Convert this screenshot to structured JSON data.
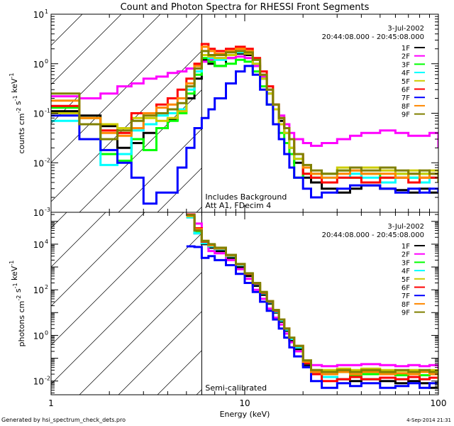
{
  "chart_data": [
    {
      "type": "line",
      "panel": "top",
      "title": "Count and Photon Spectra for RHESSI Front Segments",
      "xlabel": "Energy (keV)",
      "ylabel": "counts cm^-2 s^-1 keV^-1",
      "xscale": "log",
      "yscale": "log",
      "xlim": [
        1,
        100
      ],
      "ylim": [
        0.001,
        10
      ],
      "y_tick_labels": [
        {
          "value": 10,
          "base": "10",
          "exp": "1"
        },
        {
          "value": 1,
          "base": "10",
          "exp": "0"
        },
        {
          "value": 0.1,
          "base": "10",
          "exp": "-1"
        },
        {
          "value": 0.01,
          "base": "10",
          "exp": "-2"
        },
        {
          "value": 0.001,
          "base": "10",
          "exp": "-3"
        }
      ],
      "annotation_date": "3-Jul-2002",
      "annotation_time": "20:44:08.000 - 20:45:08.000",
      "annotation_lower": [
        "Includes Background",
        "Att A1, FDecim 4"
      ],
      "legend_position": "top-right",
      "threshold_energy_keV": 6,
      "x": [
        1,
        1.4,
        1.8,
        2.2,
        2.6,
        3.0,
        3.5,
        4.0,
        4.5,
        5.0,
        5.5,
        6.0,
        6.5,
        7,
        8,
        9,
        10,
        11,
        12,
        13,
        14,
        15,
        16,
        17,
        18,
        20,
        22,
        25,
        30,
        35,
        40,
        50,
        60,
        70,
        80,
        90,
        100
      ],
      "series": [
        {
          "name": "1F",
          "color": "#000000",
          "values": [
            0.11,
            0.09,
            0.055,
            0.02,
            0.025,
            0.04,
            0.05,
            0.075,
            0.11,
            0.2,
            0.5,
            1.2,
            1.0,
            0.9,
            1.3,
            1.6,
            1.5,
            0.9,
            0.5,
            0.25,
            0.12,
            0.07,
            0.04,
            0.02,
            0.01,
            0.005,
            0.004,
            0.003,
            0.0025,
            0.003,
            0.0035,
            0.003,
            0.0028,
            0.0025,
            0.003,
            0.0025,
            0.003
          ]
        },
        {
          "name": "2F",
          "color": "#ff00ff",
          "values": [
            0.22,
            0.2,
            0.25,
            0.35,
            0.4,
            0.5,
            0.55,
            0.65,
            0.7,
            0.8,
            0.95,
            1.1,
            1.2,
            1.3,
            1.3,
            1.4,
            1.3,
            0.9,
            0.55,
            0.3,
            0.15,
            0.09,
            0.06,
            0.04,
            0.03,
            0.025,
            0.022,
            0.025,
            0.03,
            0.035,
            0.04,
            0.045,
            0.04,
            0.035,
            0.035,
            0.04,
            0.02
          ]
        },
        {
          "name": "3F",
          "color": "#00ff00",
          "values": [
            0.13,
            0.08,
            0.015,
            0.011,
            0.03,
            0.018,
            0.05,
            0.07,
            0.1,
            0.25,
            0.6,
            1.3,
            1.1,
            0.9,
            1.0,
            1.2,
            1.1,
            0.7,
            0.35,
            0.15,
            0.06,
            0.04,
            0.025,
            0.015,
            0.005,
            0.006,
            0.005,
            0.006,
            0.007,
            0.005,
            0.006,
            0.005,
            0.006,
            0.005,
            0.006,
            0.005,
            0.006
          ]
        },
        {
          "name": "4F",
          "color": "#00ffff",
          "values": [
            0.07,
            0.06,
            0.009,
            0.015,
            0.045,
            0.06,
            0.09,
            0.1,
            0.12,
            0.3,
            0.7,
            1.5,
            1.3,
            1.2,
            1.5,
            1.7,
            1.6,
            1.0,
            0.5,
            0.25,
            0.12,
            0.06,
            0.04,
            0.02,
            0.012,
            0.008,
            0.006,
            0.005,
            0.005,
            0.006,
            0.005,
            0.004,
            0.005,
            0.005,
            0.004,
            0.005,
            0.005
          ]
        },
        {
          "name": "5F",
          "color": "#cccc00",
          "values": [
            0.1,
            0.08,
            0.06,
            0.05,
            0.08,
            0.08,
            0.07,
            0.08,
            0.11,
            0.4,
            0.8,
            1.5,
            1.4,
            1.3,
            1.5,
            1.8,
            1.6,
            1.0,
            0.5,
            0.25,
            0.12,
            0.06,
            0.04,
            0.02,
            0.012,
            0.008,
            0.006,
            0.006,
            0.008,
            0.007,
            0.008,
            0.007,
            0.006,
            0.007,
            0.006,
            0.007,
            0.006
          ]
        },
        {
          "name": "6F",
          "color": "#ff0000",
          "values": [
            0.14,
            0.06,
            0.045,
            0.04,
            0.1,
            0.1,
            0.15,
            0.2,
            0.3,
            0.5,
            1.0,
            2.5,
            2.0,
            1.8,
            2.0,
            2.2,
            2.0,
            1.3,
            0.7,
            0.35,
            0.15,
            0.08,
            0.05,
            0.03,
            0.015,
            0.006,
            0.005,
            0.004,
            0.005,
            0.005,
            0.004,
            0.005,
            0.005,
            0.004,
            0.005,
            0.005,
            0.004
          ]
        },
        {
          "name": "7F",
          "color": "#0000ff",
          "values": [
            0.09,
            0.03,
            0.018,
            0.01,
            0.005,
            0.0015,
            0.0025,
            0.0025,
            0.008,
            0.02,
            0.05,
            0.08,
            0.12,
            0.2,
            0.4,
            0.7,
            0.9,
            0.6,
            0.3,
            0.15,
            0.06,
            0.03,
            0.015,
            0.008,
            0.005,
            0.003,
            0.002,
            0.0025,
            0.003,
            0.0035,
            0.0035,
            0.003,
            0.0025,
            0.003,
            0.0025,
            0.003,
            0.0025
          ]
        },
        {
          "name": "8F",
          "color": "#ff8800",
          "values": [
            0.18,
            0.08,
            0.04,
            0.035,
            0.05,
            0.1,
            0.13,
            0.15,
            0.2,
            0.4,
            0.9,
            2.2,
            1.8,
            1.6,
            1.8,
            2.0,
            1.8,
            1.2,
            0.6,
            0.3,
            0.15,
            0.08,
            0.05,
            0.03,
            0.015,
            0.008,
            0.006,
            0.005,
            0.006,
            0.007,
            0.006,
            0.006,
            0.005,
            0.006,
            0.005,
            0.006,
            0.005
          ]
        },
        {
          "name": "9F",
          "color": "#808000",
          "values": [
            0.25,
            0.06,
            0.03,
            0.045,
            0.07,
            0.09,
            0.1,
            0.12,
            0.16,
            0.35,
            0.8,
            1.8,
            1.5,
            1.5,
            1.7,
            1.8,
            1.7,
            1.2,
            0.6,
            0.3,
            0.15,
            0.08,
            0.05,
            0.03,
            0.015,
            0.009,
            0.007,
            0.006,
            0.007,
            0.008,
            0.007,
            0.008,
            0.007,
            0.006,
            0.007,
            0.006,
            0.004
          ]
        }
      ]
    },
    {
      "type": "line",
      "panel": "bottom",
      "xlabel": "Energy (keV)",
      "ylabel": "photons cm^-2 s^-1 keV^-1",
      "xscale": "log",
      "yscale": "log",
      "xlim": [
        1,
        100
      ],
      "ylim": [
        0.0025,
        250000
      ],
      "x_tick_labels": [
        "1",
        "10",
        "100"
      ],
      "y_tick_labels": [
        {
          "value": 10000,
          "base": "10",
          "exp": "4"
        },
        {
          "value": 100,
          "base": "10",
          "exp": "2"
        },
        {
          "value": 1,
          "base": "10",
          "exp": "0"
        },
        {
          "value": 0.01,
          "base": "10",
          "exp": "-2"
        }
      ],
      "annotation_date": "3-Jul-2002",
      "annotation_time": "20:44:08.000 - 20:45:08.000",
      "annotation_lower": [
        "Semi-calibrated"
      ],
      "legend_position": "top-right",
      "threshold_energy_keV": 6,
      "x": [
        5,
        5.5,
        6,
        6.5,
        7,
        8,
        9,
        10,
        11,
        12,
        13,
        14,
        15,
        16,
        17,
        18,
        20,
        22,
        25,
        30,
        35,
        40,
        50,
        60,
        70,
        80,
        90,
        100
      ],
      "series": [
        {
          "name": "1F",
          "color": "#000000",
          "values": [
            150000,
            30000,
            10000,
            7000,
            5000,
            2500,
            1000,
            400,
            150,
            60,
            25,
            10,
            4,
            1.6,
            0.6,
            0.25,
            0.05,
            0.02,
            0.015,
            0.012,
            0.01,
            0.012,
            0.01,
            0.008,
            0.01,
            0.008,
            0.005,
            0.006
          ]
        },
        {
          "name": "2F",
          "color": "#ff00ff",
          "values": [
            200000,
            80000,
            12000,
            5000,
            4000,
            2000,
            800,
            300,
            100,
            40,
            15,
            6,
            3,
            1.2,
            0.5,
            0.2,
            0.08,
            0.05,
            0.045,
            0.05,
            0.05,
            0.055,
            0.05,
            0.045,
            0.05,
            0.045,
            0.05,
            0.025
          ]
        },
        {
          "name": "3F",
          "color": "#00ff00",
          "values": [
            160000,
            35000,
            12000,
            8000,
            6000,
            3000,
            1200,
            500,
            180,
            70,
            28,
            11,
            4.5,
            1.8,
            0.7,
            0.3,
            0.06,
            0.02,
            0.02,
            0.025,
            0.018,
            0.02,
            0.022,
            0.018,
            0.02,
            0.018,
            0.02,
            0.018
          ]
        },
        {
          "name": "4F",
          "color": "#00ffff",
          "values": [
            150000,
            30000,
            11000,
            8000,
            6000,
            3000,
            1200,
            500,
            180,
            70,
            28,
            11,
            4.5,
            1.8,
            0.7,
            0.3,
            0.06,
            0.025,
            0.015,
            0.012,
            0.015,
            0.012,
            0.014,
            0.012,
            0.015,
            0.012,
            0.014,
            0.012
          ]
        },
        {
          "name": "5F",
          "color": "#cccc00",
          "values": [
            170000,
            40000,
            13000,
            9000,
            6500,
            3200,
            1300,
            500,
            190,
            75,
            30,
            12,
            5,
            2,
            0.8,
            0.35,
            0.08,
            0.03,
            0.03,
            0.035,
            0.03,
            0.035,
            0.03,
            0.028,
            0.03,
            0.028,
            0.03,
            0.02
          ]
        },
        {
          "name": "6F",
          "color": "#ff0000",
          "values": [
            200000,
            50000,
            13000,
            9000,
            6500,
            3200,
            1300,
            500,
            190,
            75,
            30,
            12,
            5,
            2,
            0.8,
            0.35,
            0.06,
            0.02,
            0.01,
            0.012,
            0.015,
            0.012,
            0.014,
            0.012,
            0.015,
            0.012,
            0.014,
            0.012
          ]
        },
        {
          "name": "7F",
          "color": "#0000ff",
          "values": [
            8000,
            7500,
            2500,
            3000,
            2000,
            1200,
            500,
            200,
            80,
            30,
            12,
            5,
            2,
            0.8,
            0.3,
            0.12,
            0.04,
            0.01,
            0.005,
            0.008,
            0.006,
            0.008,
            0.005,
            0.006,
            0.008,
            0.005,
            0.008,
            0.006
          ]
        },
        {
          "name": "8F",
          "color": "#ff8800",
          "values": [
            180000,
            45000,
            14000,
            9000,
            6500,
            3200,
            1300,
            520,
            200,
            80,
            32,
            13,
            5,
            2,
            0.8,
            0.35,
            0.07,
            0.025,
            0.02,
            0.025,
            0.02,
            0.025,
            0.02,
            0.022,
            0.02,
            0.025,
            0.02,
            0.018
          ]
        },
        {
          "name": "9F",
          "color": "#808000",
          "values": [
            190000,
            40000,
            14000,
            10000,
            7000,
            3400,
            1350,
            530,
            200,
            80,
            32,
            13,
            5,
            2,
            0.8,
            0.35,
            0.08,
            0.03,
            0.025,
            0.03,
            0.025,
            0.03,
            0.025,
            0.03,
            0.025,
            0.03,
            0.025,
            0.005
          ]
        }
      ]
    }
  ],
  "footer": {
    "left": "Generated by hsi_spectrum_check_dets.pro",
    "right": "4-Sep-2014 21:31"
  }
}
